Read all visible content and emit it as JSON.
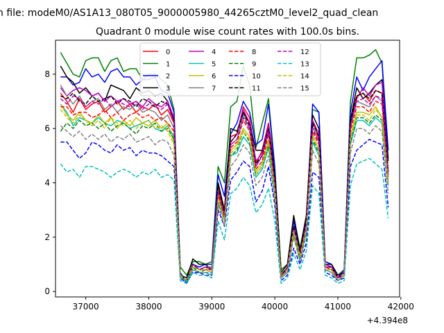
{
  "figure": {
    "suptitle": "n file: modeM0/AS1A13_080T05_9000005980_44265cztM0_level2_quad_clean"
  },
  "chart_data": {
    "type": "line",
    "title": "Quadrant 0 module wise count rates with 100.0s bins.",
    "xlabel": "",
    "ylabel": "",
    "x_offset_label": "+4.394e8",
    "xlim": [
      36520,
      41980
    ],
    "ylim": [
      -0.2,
      9.25
    ],
    "grid": false,
    "legend_position": "top-center",
    "x_ticks": [
      37000,
      38000,
      39000,
      40000,
      41000,
      42000
    ],
    "x_tick_labels": [
      "37000",
      "38000",
      "39000",
      "40000",
      "41000",
      "42000"
    ],
    "y_ticks": [
      0,
      2,
      4,
      6,
      8
    ],
    "y_tick_labels": [
      "0",
      "2",
      "4",
      "6",
      "8"
    ],
    "x": [
      36600,
      36700,
      36800,
      36900,
      37000,
      37100,
      37200,
      37300,
      37400,
      37500,
      37600,
      37700,
      37800,
      37900,
      38000,
      38100,
      38200,
      38300,
      38400,
      38500,
      38600,
      38700,
      38800,
      38900,
      39000,
      39100,
      39200,
      39300,
      39400,
      39500,
      39600,
      39700,
      39800,
      39900,
      40000,
      40100,
      40200,
      40300,
      40400,
      40500,
      40600,
      40700,
      40800,
      40900,
      41000,
      41100,
      41200,
      41300,
      41400,
      41500,
      41600,
      41700,
      41800
    ],
    "series": [
      {
        "name": "0",
        "color": "#ff0000",
        "dash": "solid",
        "values": [
          7.3,
          7.0,
          6.6,
          7.1,
          6.7,
          6.9,
          7.0,
          6.6,
          6.8,
          7.0,
          6.7,
          6.9,
          6.6,
          6.8,
          6.7,
          6.9,
          6.5,
          6.7,
          6.2,
          0.6,
          0.4,
          1.0,
          0.8,
          0.9,
          0.8,
          3.9,
          2.9,
          5.7,
          5.8,
          6.8,
          6.4,
          4.7,
          5.2,
          6.2,
          4.4,
          0.6,
          0.9,
          2.4,
          1.4,
          2.7,
          6.3,
          5.6,
          1.0,
          0.9,
          0.5,
          0.7,
          6.3,
          7.2,
          7.3,
          7.0,
          7.4,
          7.3,
          4.0
        ]
      },
      {
        "name": "1",
        "color": "#008000",
        "dash": "solid",
        "values": [
          8.8,
          8.4,
          8.0,
          7.9,
          8.5,
          8.6,
          8.6,
          8.1,
          8.5,
          8.6,
          8.1,
          8.2,
          8.2,
          7.8,
          8.0,
          8.0,
          7.8,
          7.6,
          6.7,
          0.9,
          0.6,
          1.1,
          1.1,
          1.0,
          1.1,
          4.6,
          4.0,
          6.8,
          7.0,
          8.3,
          7.6,
          5.3,
          6.2,
          7.1,
          4.6,
          0.8,
          1.0,
          2.7,
          1.6,
          2.8,
          6.7,
          6.6,
          1.1,
          1.0,
          0.6,
          0.8,
          7.0,
          8.6,
          8.6,
          8.7,
          8.9,
          8.4,
          4.9
        ]
      },
      {
        "name": "2",
        "color": "#0000ff",
        "dash": "solid",
        "values": [
          7.9,
          7.9,
          7.6,
          7.7,
          8.2,
          7.9,
          8.0,
          7.7,
          8.1,
          8.2,
          7.9,
          7.9,
          7.6,
          7.8,
          7.8,
          7.9,
          7.4,
          7.3,
          6.6,
          0.7,
          0.3,
          1.0,
          0.9,
          1.0,
          1.0,
          4.3,
          3.5,
          5.8,
          6.2,
          7.0,
          6.6,
          5.4,
          5.6,
          6.9,
          4.5,
          0.6,
          0.9,
          2.6,
          1.5,
          2.6,
          6.9,
          6.6,
          1.1,
          1.0,
          0.5,
          0.8,
          6.6,
          7.9,
          7.4,
          7.9,
          8.2,
          8.5,
          5.2
        ]
      },
      {
        "name": "3",
        "color": "#000000",
        "dash": "solid",
        "values": [
          8.3,
          7.9,
          7.7,
          7.3,
          7.5,
          7.2,
          7.3,
          7.0,
          7.6,
          7.5,
          7.4,
          7.1,
          7.5,
          7.3,
          7.4,
          7.2,
          7.3,
          7.0,
          6.3,
          0.6,
          0.5,
          1.2,
          1.0,
          1.0,
          0.8,
          4.0,
          3.0,
          6.0,
          5.9,
          6.6,
          6.2,
          5.2,
          5.2,
          6.1,
          4.3,
          0.7,
          1.0,
          2.8,
          1.5,
          2.8,
          6.5,
          6.0,
          1.0,
          1.0,
          0.6,
          0.7,
          6.3,
          7.5,
          7.1,
          7.3,
          7.6,
          7.8,
          4.8
        ]
      },
      {
        "name": "4",
        "color": "#bf00bf",
        "dash": "solid",
        "values": [
          7.5,
          7.2,
          7.4,
          7.5,
          7.4,
          7.2,
          7.3,
          7.0,
          7.2,
          7.0,
          7.1,
          6.9,
          7.0,
          6.8,
          7.1,
          6.9,
          6.8,
          7.0,
          6.4,
          0.6,
          0.4,
          1.0,
          0.8,
          0.9,
          0.9,
          3.7,
          2.8,
          5.5,
          5.8,
          6.7,
          6.2,
          4.8,
          5.1,
          6.1,
          4.0,
          0.5,
          0.9,
          2.3,
          1.4,
          2.6,
          6.3,
          5.8,
          1.0,
          0.9,
          0.5,
          0.7,
          6.1,
          7.1,
          7.5,
          7.2,
          7.6,
          7.7,
          4.4
        ]
      },
      {
        "name": "5",
        "color": "#00bfbf",
        "dash": "solid",
        "values": [
          6.9,
          6.6,
          6.1,
          6.4,
          6.3,
          6.2,
          6.4,
          6.2,
          6.1,
          6.3,
          6.2,
          6.0,
          6.1,
          6.2,
          6.3,
          6.0,
          5.9,
          6.1,
          5.7,
          0.6,
          0.3,
          0.8,
          0.7,
          0.7,
          0.6,
          3.3,
          2.6,
          5.0,
          5.1,
          5.7,
          5.4,
          4.2,
          4.5,
          5.3,
          3.6,
          0.5,
          0.7,
          2.1,
          1.2,
          2.2,
          5.5,
          5.0,
          0.8,
          0.7,
          0.4,
          0.6,
          5.4,
          6.3,
          6.3,
          6.1,
          6.4,
          6.2,
          3.9
        ]
      },
      {
        "name": "6",
        "color": "#bfbf00",
        "dash": "solid",
        "values": [
          6.9,
          6.5,
          6.3,
          6.6,
          6.3,
          6.2,
          6.5,
          6.2,
          6.4,
          6.0,
          6.3,
          6.1,
          6.4,
          6.2,
          6.1,
          6.3,
          6.0,
          6.2,
          5.5,
          0.6,
          0.4,
          0.9,
          0.8,
          0.8,
          0.8,
          3.5,
          2.7,
          5.2,
          5.4,
          6.0,
          5.7,
          4.4,
          4.7,
          5.6,
          3.8,
          0.5,
          0.8,
          2.2,
          1.3,
          2.4,
          5.8,
          5.2,
          0.9,
          0.8,
          0.5,
          0.6,
          5.7,
          6.6,
          6.6,
          6.5,
          6.8,
          6.4,
          4.1
        ]
      },
      {
        "name": "7",
        "color": "#808080",
        "dash": "solid",
        "values": [
          7.6,
          7.2,
          6.9,
          7.2,
          6.8,
          7.0,
          7.1,
          6.7,
          6.9,
          6.6,
          6.8,
          6.7,
          6.9,
          6.6,
          6.7,
          6.6,
          6.3,
          6.5,
          6.0,
          0.6,
          0.4,
          1.0,
          0.8,
          0.9,
          0.9,
          3.7,
          2.8,
          5.4,
          5.6,
          6.5,
          6.0,
          4.6,
          5.0,
          5.9,
          4.0,
          0.6,
          0.9,
          2.4,
          1.4,
          2.5,
          6.1,
          5.5,
          0.9,
          0.9,
          0.5,
          0.7,
          6.0,
          7.0,
          6.9,
          6.8,
          7.2,
          7.0,
          4.3
        ]
      },
      {
        "name": "8",
        "color": "#ff0000",
        "dash": "dashed",
        "values": [
          6.8,
          6.8,
          6.5,
          6.6,
          6.6,
          6.4,
          6.5,
          6.7,
          6.4,
          6.6,
          6.3,
          6.5,
          6.6,
          6.4,
          6.5,
          6.3,
          6.4,
          6.2,
          5.9,
          0.6,
          0.4,
          1.0,
          0.8,
          0.8,
          0.8,
          3.6,
          2.7,
          5.3,
          5.5,
          6.3,
          5.9,
          4.5,
          4.8,
          5.8,
          3.9,
          0.5,
          0.8,
          2.3,
          1.3,
          2.5,
          5.9,
          5.4,
          0.9,
          0.8,
          0.5,
          0.6,
          5.9,
          6.8,
          6.8,
          6.6,
          7.0,
          6.9,
          4.2
        ]
      },
      {
        "name": "9",
        "color": "#008000",
        "dash": "dashed",
        "values": [
          5.9,
          6.2,
          6.0,
          6.3,
          6.1,
          6.2,
          6.0,
          6.2,
          5.9,
          6.1,
          6.2,
          6.0,
          5.8,
          6.1,
          6.0,
          6.2,
          5.9,
          6.0,
          5.6,
          0.6,
          0.4,
          0.9,
          0.7,
          0.8,
          0.7,
          3.4,
          2.6,
          5.0,
          5.2,
          5.9,
          5.5,
          4.3,
          4.6,
          5.4,
          3.7,
          0.5,
          0.8,
          2.2,
          1.2,
          2.3,
          5.6,
          5.1,
          0.8,
          0.8,
          0.4,
          0.6,
          5.5,
          6.4,
          6.4,
          6.2,
          6.5,
          6.3,
          4.0
        ]
      },
      {
        "name": "10",
        "color": "#0000ff",
        "dash": "dashed",
        "values": [
          5.5,
          5.5,
          5.2,
          4.9,
          5.1,
          5.5,
          5.4,
          5.2,
          5.1,
          5.4,
          5.2,
          5.3,
          5.0,
          5.2,
          5.1,
          5.1,
          5.0,
          4.8,
          4.6,
          0.5,
          0.3,
          0.7,
          0.7,
          0.6,
          0.6,
          3.0,
          2.4,
          4.1,
          4.4,
          4.8,
          4.6,
          3.3,
          3.7,
          4.6,
          3.2,
          0.4,
          0.6,
          1.6,
          1.0,
          1.8,
          4.4,
          4.2,
          0.7,
          0.6,
          0.4,
          0.5,
          4.6,
          5.2,
          5.4,
          5.6,
          5.5,
          5.4,
          3.1
        ]
      },
      {
        "name": "11",
        "color": "#000000",
        "dash": "dashed",
        "values": [
          7.2,
          7.1,
          7.3,
          7.0,
          6.9,
          7.2,
          7.0,
          7.1,
          7.2,
          6.9,
          7.1,
          7.0,
          6.8,
          7.1,
          7.0,
          6.8,
          7.0,
          6.9,
          6.3,
          0.6,
          0.4,
          1.0,
          0.8,
          0.9,
          0.8,
          3.8,
          2.9,
          5.5,
          5.8,
          6.6,
          6.1,
          4.7,
          5.0,
          6.0,
          4.1,
          0.6,
          0.9,
          2.4,
          1.4,
          2.6,
          6.2,
          5.7,
          0.9,
          0.9,
          0.5,
          0.7,
          6.2,
          7.2,
          7.3,
          7.1,
          7.4,
          7.3,
          4.4
        ]
      },
      {
        "name": "12",
        "color": "#bf00bf",
        "dash": "dashed",
        "values": [
          7.1,
          6.9,
          7.2,
          7.1,
          6.8,
          7.0,
          6.9,
          7.1,
          6.8,
          7.0,
          6.9,
          6.8,
          7.0,
          6.7,
          6.9,
          6.8,
          6.7,
          6.9,
          6.2,
          0.6,
          0.4,
          1.0,
          0.8,
          0.9,
          0.8,
          3.7,
          2.8,
          5.4,
          5.6,
          6.4,
          6.0,
          4.6,
          5.0,
          5.9,
          4.0,
          0.5,
          0.9,
          2.3,
          1.4,
          2.5,
          6.0,
          5.5,
          0.9,
          0.9,
          0.5,
          0.7,
          6.1,
          7.0,
          7.1,
          6.9,
          7.2,
          7.1,
          4.3
        ]
      },
      {
        "name": "13",
        "color": "#00bfbf",
        "dash": "dashed",
        "values": [
          4.7,
          4.4,
          4.5,
          4.2,
          4.6,
          4.6,
          4.5,
          4.4,
          4.2,
          4.4,
          4.5,
          4.4,
          4.2,
          4.4,
          4.3,
          4.5,
          4.2,
          4.3,
          4.1,
          0.4,
          0.3,
          0.7,
          0.6,
          0.6,
          0.5,
          2.6,
          1.9,
          3.6,
          3.8,
          4.2,
          3.9,
          2.9,
          3.2,
          3.8,
          2.6,
          0.3,
          0.5,
          1.4,
          0.8,
          1.5,
          3.9,
          3.6,
          0.6,
          0.5,
          0.3,
          0.4,
          3.9,
          4.7,
          4.8,
          4.9,
          4.7,
          4.5,
          2.7
        ]
      },
      {
        "name": "14",
        "color": "#bfbf00",
        "dash": "dashed",
        "values": [
          6.7,
          6.4,
          6.2,
          6.5,
          6.3,
          6.1,
          6.3,
          6.0,
          6.4,
          6.2,
          6.1,
          6.3,
          6.0,
          6.2,
          6.3,
          6.0,
          6.1,
          5.9,
          5.4,
          0.6,
          0.4,
          0.9,
          0.8,
          0.8,
          0.7,
          3.4,
          2.6,
          5.1,
          5.3,
          5.9,
          5.6,
          4.3,
          4.6,
          5.5,
          3.7,
          0.5,
          0.8,
          2.2,
          1.3,
          2.3,
          5.7,
          5.2,
          0.8,
          0.8,
          0.4,
          0.6,
          5.6,
          6.5,
          6.5,
          6.3,
          6.7,
          6.4,
          4.0
        ]
      },
      {
        "name": "15",
        "color": "#808080",
        "dash": "dashed",
        "values": [
          6.1,
          5.9,
          5.7,
          5.9,
          5.6,
          5.8,
          5.6,
          5.8,
          5.5,
          5.7,
          5.6,
          5.8,
          5.5,
          5.6,
          5.7,
          5.4,
          5.6,
          5.5,
          5.0,
          0.5,
          0.4,
          0.8,
          0.7,
          0.7,
          0.7,
          3.2,
          2.4,
          4.6,
          4.9,
          5.4,
          5.1,
          3.9,
          4.2,
          5.0,
          3.4,
          0.5,
          0.7,
          2.0,
          1.1,
          2.1,
          5.2,
          4.7,
          0.8,
          0.7,
          0.4,
          0.6,
          5.1,
          6.0,
          6.0,
          5.8,
          6.1,
          5.9,
          3.6
        ]
      }
    ]
  }
}
